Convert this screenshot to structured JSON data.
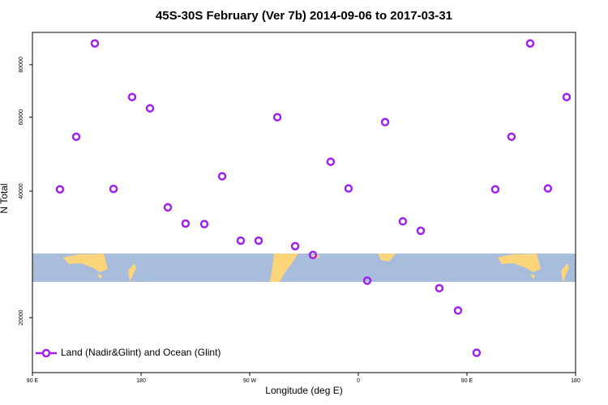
{
  "chart_data": {
    "type": "scatter",
    "title": "45S-30S February (Ver 7b)   2014-09-06 to 2017-03-31",
    "x_label": "Longitude (deg E)",
    "y_label": "N Total",
    "log_y": true,
    "grid": false,
    "legend_location": "bottom left",
    "xlim": [
      90,
      540
    ],
    "xticks": [
      {
        "value": 90,
        "label": "90 E"
      },
      {
        "value": 180,
        "label": "180"
      },
      {
        "value": 270,
        "label": "90 W"
      },
      {
        "value": 360,
        "label": "0"
      },
      {
        "value": 450,
        "label": "90 E"
      },
      {
        "value": 540,
        "label": "180"
      }
    ],
    "ylim": [
      14800,
      95500
    ],
    "yticks": [
      20000,
      40000,
      60000,
      80000
    ],
    "series": [
      {
        "name": "Land (Nadir&Glint) and Ocean (Glint)",
        "color": "#a020f0",
        "x": [
          112.8,
          126.3,
          141.7,
          157.2,
          172.6,
          187.4,
          202.2,
          216.9,
          232.4,
          247.2,
          262.6,
          277.4,
          292.9,
          307.7,
          322.4,
          337.1,
          351.9,
          367.4,
          382.2,
          396.9,
          411.7,
          427.1,
          442.6,
          458.0,
          473.5,
          486.9,
          502.4,
          517.1,
          532.6
        ],
        "values": [
          40400,
          53900,
          89900,
          40500,
          67000,
          63000,
          36600,
          33500,
          33400,
          43400,
          30500,
          30500,
          60000,
          29600,
          28200,
          47000,
          40600,
          24500,
          58400,
          33900,
          32200,
          23500,
          20800,
          16500,
          40400,
          53900,
          89900,
          40600,
          67000
        ]
      }
    ]
  }
}
